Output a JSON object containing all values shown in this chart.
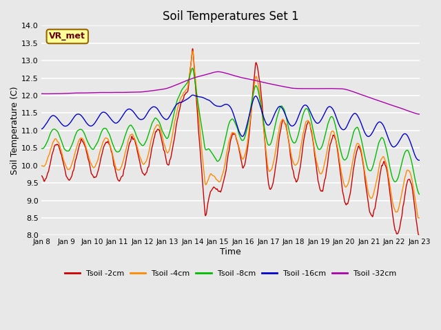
{
  "title": "Soil Temperatures Set 1",
  "xlabel": "Time",
  "ylabel": "Soil Temperature (C)",
  "ylim": [
    8.0,
    14.0
  ],
  "yticks": [
    8.0,
    8.5,
    9.0,
    9.5,
    10.0,
    10.5,
    11.0,
    11.5,
    12.0,
    12.5,
    13.0,
    13.5,
    14.0
  ],
  "bg_color": "#e8e8e8",
  "plot_bg": "#e8e8e8",
  "grid_color": "#ffffff",
  "series_colors": [
    "#cc0000",
    "#ff8800",
    "#00bb00",
    "#0000cc",
    "#aa00aa"
  ],
  "series_labels": [
    "Tsoil -2cm",
    "Tsoil -4cm",
    "Tsoil -8cm",
    "Tsoil -16cm",
    "Tsoil -32cm"
  ],
  "xtick_labels": [
    "Jan 8",
    "Jan 9",
    "Jan 10",
    "Jan 11",
    "Jan 12",
    "Jan 13",
    "Jan 14",
    "Jan 15",
    "Jan 16",
    "Jan 17",
    "Jan 18",
    "Jan 19",
    "Jan 20",
    "Jan 21",
    "Jan 22",
    "Jan 23"
  ],
  "watermark": "VR_met",
  "n_points": 2000
}
